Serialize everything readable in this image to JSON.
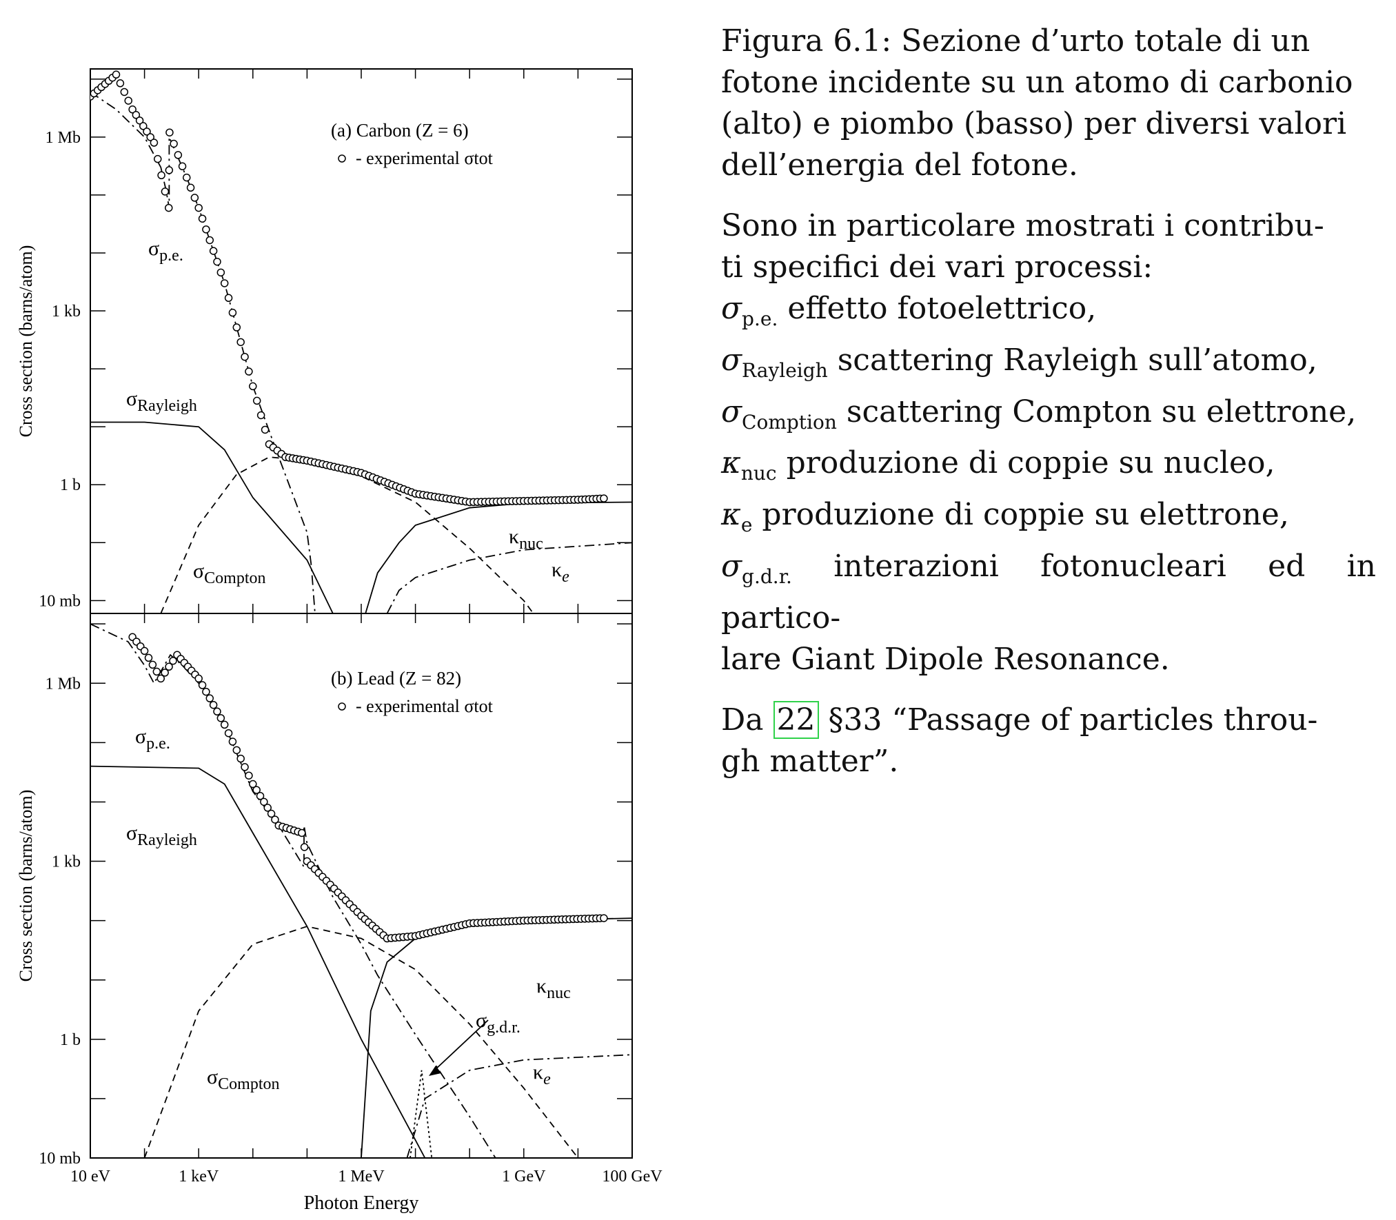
{
  "chart_data": [
    {
      "type": "line",
      "title": "(a) Carbon (Z = 6)",
      "legend": "- experimental σtot",
      "ylabel": "Cross section  (barns/atom)",
      "xlabel": "",
      "x_unit": "eV",
      "y_unit": "barns/atom",
      "x_scale": "log",
      "y_scale": "log",
      "xlim": [
        10,
        100000000000.0
      ],
      "ylim": [
        0.006,
        15000000.0
      ],
      "yticks": [
        {
          "v": 0.01,
          "label": "10 mb"
        },
        {
          "v": 1,
          "label": "1 b"
        },
        {
          "v": 1000,
          "label": "1 kb"
        },
        {
          "v": 1000000,
          "label": "1 Mb"
        }
      ],
      "series": [
        {
          "name": "σRayleigh",
          "style": "solid",
          "points": [
            [
              10,
              12
            ],
            [
              100,
              12
            ],
            [
              1000,
              10
            ],
            [
              3000,
              4
            ],
            [
              10000,
              0.6
            ],
            [
              100000,
              0.05
            ],
            [
              300000,
              0.006
            ]
          ]
        },
        {
          "name": "σCompton",
          "style": "dashed",
          "points": [
            [
              200,
              0.006
            ],
            [
              1000,
              0.2
            ],
            [
              5000,
              1.5
            ],
            [
              20000,
              3
            ],
            [
              100000,
              2.6
            ],
            [
              1000000,
              1.4
            ],
            [
              10000000,
              0.5
            ],
            [
              100000000,
              0.08
            ],
            [
              1000000000,
              0.01
            ],
            [
              1500000000,
              0.006
            ]
          ]
        },
        {
          "name": "σp.e.",
          "style": "dashdot",
          "points": [
            [
              10,
              6000000
            ],
            [
              30,
              3000000
            ],
            [
              100,
              1000000
            ],
            [
              200,
              300000
            ],
            [
              250,
              120000
            ],
            [
              285,
              60000
            ],
            [
              285,
              1000000
            ],
            [
              300,
              900000
            ],
            [
              600,
              200000
            ],
            [
              1000,
              60000
            ],
            [
              3000,
              3000
            ],
            [
              10000,
              50
            ],
            [
              30000,
              3
            ],
            [
              100000,
              0.15
            ],
            [
              120000,
              0.04
            ],
            [
              140000,
              0.006
            ]
          ]
        },
        {
          "name": "κnuc",
          "style": "solid",
          "points": [
            [
              1200000,
              0.006
            ],
            [
              2000000,
              0.03
            ],
            [
              5000000,
              0.1
            ],
            [
              10000000,
              0.2
            ],
            [
              100000000,
              0.4
            ],
            [
              1000000000,
              0.48
            ],
            [
              100000000000,
              0.5
            ]
          ]
        },
        {
          "name": "κe",
          "style": "dashdot",
          "points": [
            [
              3000000,
              0.006
            ],
            [
              5000000,
              0.015
            ],
            [
              10000000,
              0.025
            ],
            [
              100000000,
              0.05
            ],
            [
              1000000000,
              0.075
            ],
            [
              100000000000,
              0.1
            ]
          ]
        },
        {
          "name": "experimental σtot",
          "style": "circles",
          "points": [
            [
              10,
              5000000
            ],
            [
              30,
              12000000
            ],
            [
              60,
              3000000
            ],
            [
              150,
              800000
            ],
            [
              280,
              60000
            ],
            [
              290,
              1200000
            ],
            [
              600,
              200000
            ],
            [
              1000,
              60000
            ],
            [
              3000,
              3000
            ],
            [
              10000,
              50
            ],
            [
              20000,
              5
            ],
            [
              40000,
              3
            ],
            [
              100000,
              2.6
            ],
            [
              1000000,
              1.6
            ],
            [
              10000000,
              0.7
            ],
            [
              100000000,
              0.5
            ],
            [
              10000000000,
              0.55
            ],
            [
              30000000000,
              0.58
            ]
          ]
        }
      ],
      "annotations": [
        "σRayleigh",
        "σp.e.",
        "σCompton",
        "κnuc",
        "κe"
      ]
    },
    {
      "type": "line",
      "title": "(b) Lead (Z = 82)",
      "legend": "- experimental σtot",
      "ylabel": "Cross section  (barns/atom)",
      "xlabel": "Photon Energy",
      "x_unit": "eV",
      "y_unit": "barns/atom",
      "x_scale": "log",
      "y_scale": "log",
      "xlim": [
        10,
        100000000000.0
      ],
      "ylim": [
        0.01,
        15000000.0
      ],
      "xticks": [
        {
          "v": 10,
          "label": "10 eV"
        },
        {
          "v": 1000,
          "label": "1 keV"
        },
        {
          "v": 1000000,
          "label": "1 MeV"
        },
        {
          "v": 1000000000,
          "label": "1 GeV"
        },
        {
          "v": 100000000000,
          "label": "100 GeV"
        }
      ],
      "yticks": [
        {
          "v": 0.01,
          "label": "10 mb"
        },
        {
          "v": 1,
          "label": "1 b"
        },
        {
          "v": 1000,
          "label": "1 kb"
        },
        {
          "v": 1000000,
          "label": "1 Mb"
        }
      ],
      "series": [
        {
          "name": "σRayleigh",
          "style": "solid",
          "points": [
            [
              10,
              40000
            ],
            [
              1000,
              37000
            ],
            [
              3000,
              20000
            ],
            [
              10000,
              3000
            ],
            [
              100000,
              80
            ],
            [
              1000000,
              1
            ],
            [
              10000000,
              0.02
            ],
            [
              15000000,
              0.01
            ]
          ]
        },
        {
          "name": "σCompton",
          "style": "dashed",
          "points": [
            [
              100,
              0.01
            ],
            [
              1000,
              3
            ],
            [
              10000,
              40
            ],
            [
              100000,
              80
            ],
            [
              1000000,
              50
            ],
            [
              10000000,
              15
            ],
            [
              100000000,
              1.8
            ],
            [
              1000000000,
              0.15
            ],
            [
              10000000000,
              0.01
            ]
          ]
        },
        {
          "name": "σp.e.",
          "style": "dashdot",
          "points": [
            [
              10,
              10000000
            ],
            [
              50,
              5000000
            ],
            [
              100,
              2000000
            ],
            [
              150,
              1000000
            ],
            [
              150,
              1000000
            ],
            [
              300,
              3000000
            ],
            [
              500,
              2000000
            ],
            [
              1000,
              1000000
            ],
            [
              3000,
              200000
            ],
            [
              10000,
              15000
            ],
            [
              30000,
              4000
            ],
            [
              88000,
              800
            ],
            [
              88000,
              4000
            ],
            [
              100000,
              2000
            ],
            [
              300000,
              250
            ],
            [
              1000000,
              40
            ],
            [
              2000000,
              12
            ],
            [
              10000000,
              1.2
            ],
            [
              100000000,
              0.05
            ],
            [
              300000000,
              0.01
            ]
          ]
        },
        {
          "name": "σg.d.r.",
          "style": "dotted",
          "points": [
            [
              8000000,
              0.01
            ],
            [
              13000000,
              0.3
            ],
            [
              20000000,
              0.01
            ]
          ]
        },
        {
          "name": "κnuc",
          "style": "solid",
          "points": [
            [
              1000000,
              0.01
            ],
            [
              1500000,
              3
            ],
            [
              3000000,
              20
            ],
            [
              10000000,
              50
            ],
            [
              100000000,
              90
            ],
            [
              1000000000,
              100
            ],
            [
              100000000000,
              110
            ]
          ]
        },
        {
          "name": "κe",
          "style": "dashdot",
          "points": [
            [
              7000000,
              0.01
            ],
            [
              15000000,
              0.1
            ],
            [
              100000000,
              0.3
            ],
            [
              1000000000,
              0.45
            ],
            [
              100000000000,
              0.55
            ]
          ]
        },
        {
          "name": "experimental σtot",
          "style": "circles",
          "points": [
            [
              60,
              6000000
            ],
            [
              100,
              3500000
            ],
            [
              200,
              1200000
            ],
            [
              400,
              3000000
            ],
            [
              1000,
              1200000
            ],
            [
              3000,
              200000
            ],
            [
              10000,
              20000
            ],
            [
              30000,
              4000
            ],
            [
              80000,
              3000
            ],
            [
              100000,
              1000
            ],
            [
              1000000,
              120
            ],
            [
              3000000,
              50
            ],
            [
              10000000,
              55
            ],
            [
              100000000,
              90
            ],
            [
              1000000000,
              100
            ],
            [
              30000000000,
              110
            ]
          ]
        }
      ],
      "annotations": [
        "σRayleigh",
        "σp.e.",
        "σCompton",
        "κnuc",
        "κe",
        "σg.d.r."
      ]
    }
  ],
  "caption": {
    "title_lines": [
      "Figura 6.1:  Sezione d’urto totale di un",
      "fotone incidente su un atomo di carbonio",
      "(alto) e piombo (basso) per diversi valori",
      "dell’energia del fotone."
    ],
    "p2_lines": [
      "Sono in particolare mostrati i contribu-",
      "ti specifici dei vari processi:"
    ],
    "items": [
      {
        "sym": "σ",
        "sub": "p.e.",
        "text": " effetto fotoelettrico,"
      },
      {
        "sym": "σ",
        "sub": "Rayleigh",
        "text": " scattering Rayleigh sull’atomo,"
      },
      {
        "sym": "σ",
        "sub": "Comption",
        "text": " scattering Compton su elettrone,"
      },
      {
        "sym": "κ",
        "sub": "nuc",
        "text": " produzione di coppie su nucleo,"
      },
      {
        "sym": "κ",
        "sub": "e",
        "text": " produzione di coppie su elettrone,"
      },
      {
        "sym": "σ",
        "sub": "g.d.r.",
        "text": " interazioni fotonucleari ed in partico-"
      }
    ],
    "items_tail": "lare Giant Dipole Resonance.",
    "ref_prefix": "Da ",
    "ref_num": "22",
    "ref_suffix": " §33 “Passage of particles throu-",
    "ref_tail": "gh matter”."
  }
}
